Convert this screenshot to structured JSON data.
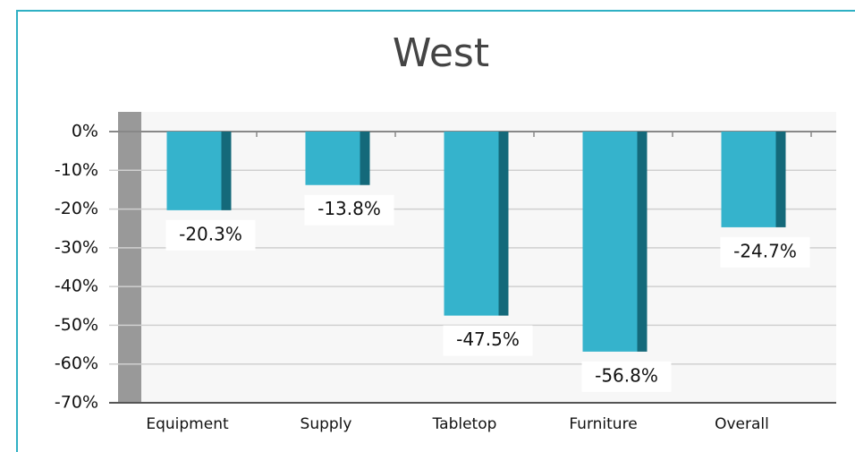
{
  "chart_data": {
    "type": "bar",
    "title": "West",
    "categories": [
      "Equipment",
      "Supply",
      "Tabletop",
      "Furniture",
      "Overall"
    ],
    "values": [
      -20.3,
      -13.8,
      -47.5,
      -56.8,
      -24.7
    ],
    "value_labels": [
      "-20.3%",
      "-13.8%",
      "-47.5%",
      "-56.8%",
      "-24.7%"
    ],
    "color": "#35b3cc",
    "side_color": "#14697a",
    "ylim": [
      -70,
      0
    ],
    "yticks": [
      {
        "value": 0,
        "label": "0%"
      },
      {
        "value": -10,
        "label": "-10%"
      },
      {
        "value": -20,
        "label": "-20%"
      },
      {
        "value": -30,
        "label": "-30%"
      },
      {
        "value": -40,
        "label": "-40%"
      },
      {
        "value": -50,
        "label": "-50%"
      },
      {
        "value": -60,
        "label": "-60%"
      },
      {
        "value": -70,
        "label": "-70%"
      }
    ],
    "grid": true
  }
}
